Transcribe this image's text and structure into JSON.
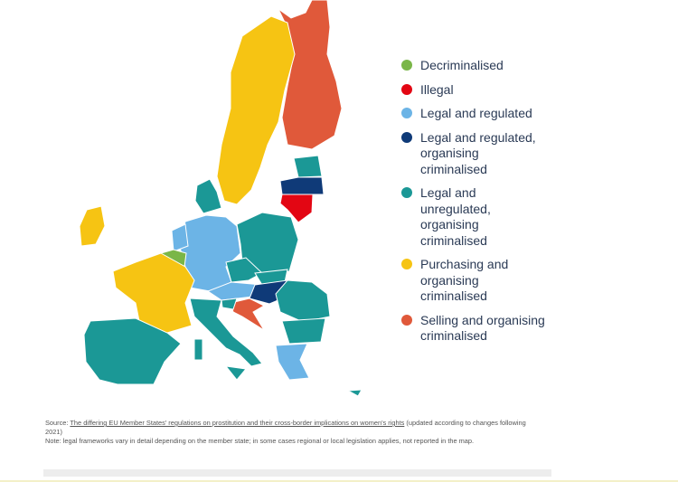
{
  "legend": {
    "items": [
      {
        "label": "Decriminalised",
        "color": "#7ab648"
      },
      {
        "label": "Illegal",
        "color": "#e30613"
      },
      {
        "label": "Legal and regulated",
        "color": "#6cb4e6"
      },
      {
        "label": "Legal and regulated, organising criminalised",
        "color": "#0f3a78"
      },
      {
        "label": "Legal and unregulated, organising criminalised",
        "color": "#1b9896"
      },
      {
        "label": "Purchasing and organising criminalised",
        "color": "#f6c413"
      },
      {
        "label": "Selling and organising criminalised",
        "color": "#e0593a"
      }
    ]
  },
  "source": {
    "prefix": "Source:",
    "link": "The differing EU Member States' regulations on prostitution and their cross-border implications on women's rights",
    "suffix": "(updated according to changes following 2021)"
  },
  "note": "Note: legal frameworks vary in detail depending on the member state; in some cases regional or local legislation applies, not reported in the map."
}
